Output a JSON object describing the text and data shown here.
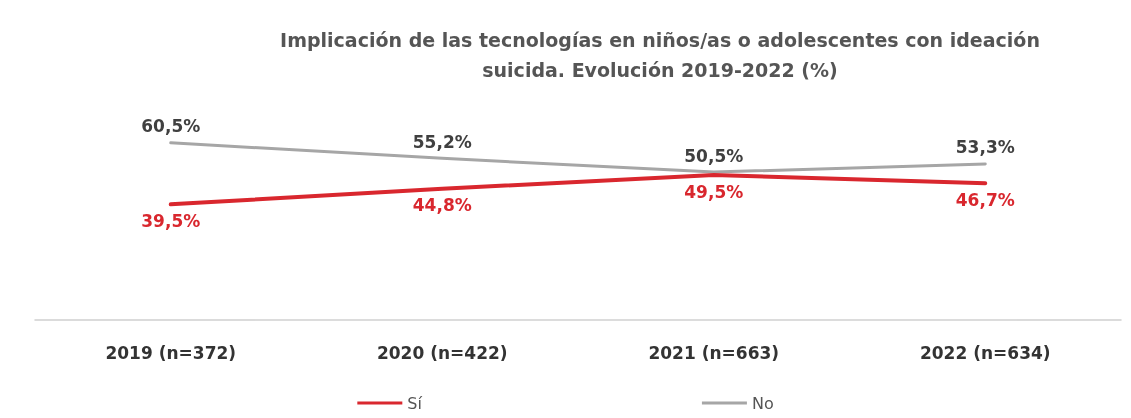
{
  "chart_data": {
    "type": "line",
    "title": "Implicación de las tecnologías en niños/as o adolescentes con ideación\nsuicida. Evolución 2019-2022 (%)",
    "categories": [
      "2019 (n=372)",
      "2020 (n=422)",
      "2021 (n=663)",
      "2022 (n=634)"
    ],
    "series": [
      {
        "name": "Sí",
        "color": "#d9272e",
        "values": [
          39.5,
          44.8,
          49.5,
          46.7
        ],
        "value_labels": [
          "39,5%",
          "44,8%",
          "49,5%",
          "46,7%"
        ]
      },
      {
        "name": "No",
        "color": "#a6a6a6",
        "values": [
          60.5,
          55.2,
          50.5,
          53.3
        ],
        "value_labels": [
          "60,5%",
          "55,2%",
          "50,5%",
          "53,3%"
        ]
      }
    ],
    "tick_labels": "x",
    "legend": "bottom",
    "marker": "none",
    "grid": false
  }
}
